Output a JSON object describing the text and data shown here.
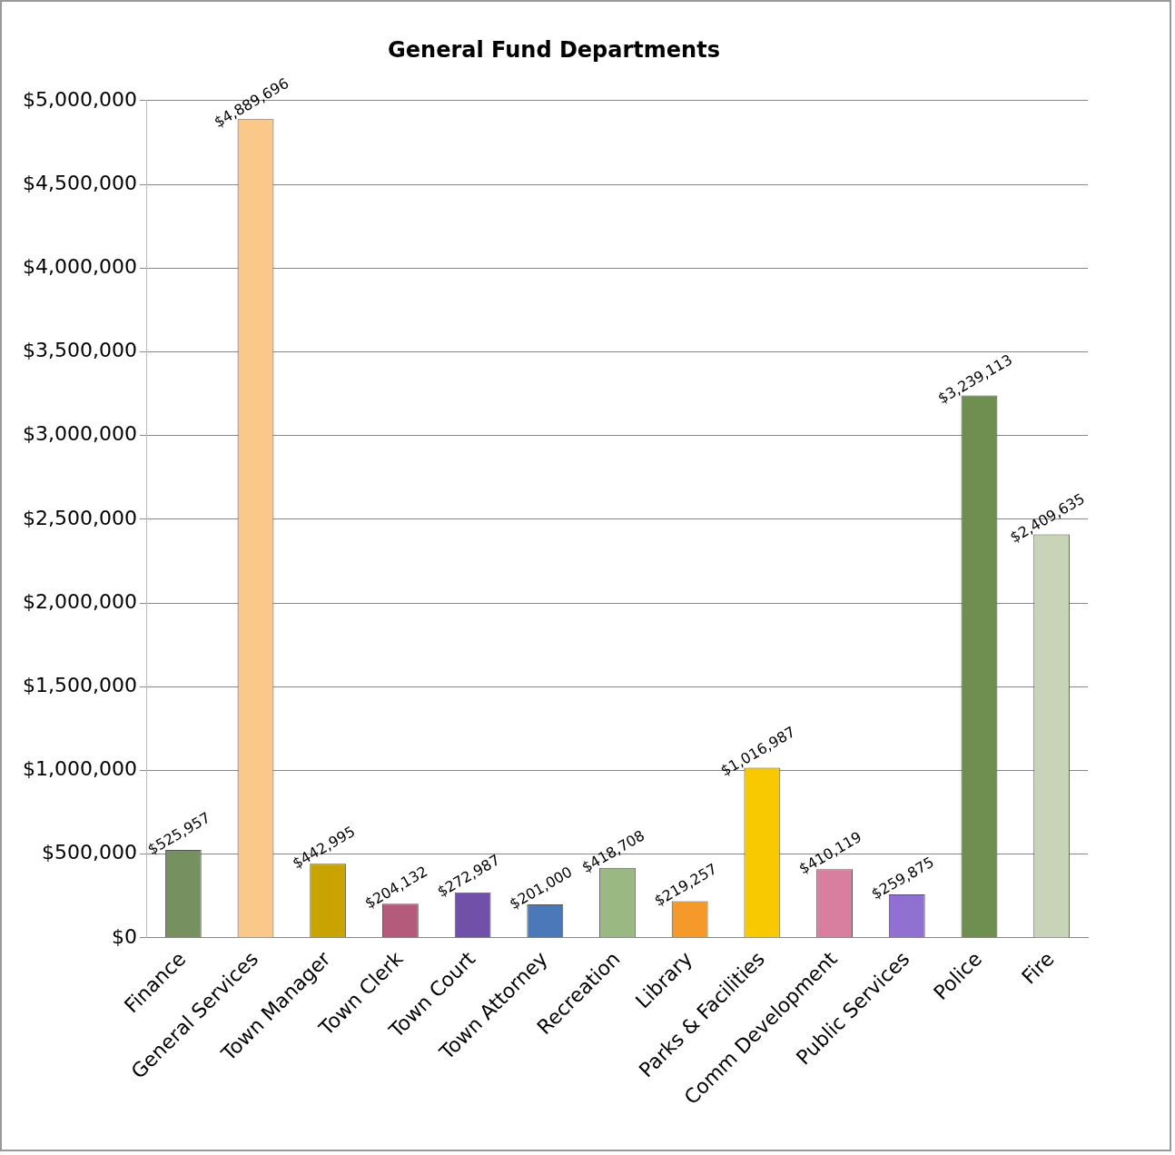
{
  "chart_data": {
    "type": "bar",
    "title": "General Fund Departments",
    "categories": [
      "Finance",
      "General Services",
      "Town Manager",
      "Town Clerk",
      "Town Court",
      "Town Attorney",
      "Recreation",
      "Library",
      "Parks & Facilities",
      "Comm Development",
      "Public Services",
      "Police",
      "Fire"
    ],
    "values": [
      525957,
      4889696,
      442995,
      204132,
      272987,
      201000,
      418708,
      219257,
      1016987,
      410119,
      259875,
      3239113,
      2409635
    ],
    "colors": [
      "#77905f",
      "#fac98a",
      "#c9a300",
      "#b45a7a",
      "#7050a8",
      "#4a78b8",
      "#9ab882",
      "#f59a2a",
      "#f8c800",
      "#d87fa0",
      "#9070d0",
      "#6f8f50",
      "#c8d4b8"
    ],
    "value_labels": [
      "$525,957",
      "$4,889,696",
      "$442,995",
      "$204,132",
      "$272,987",
      "$201,000",
      "$418,708",
      "$219,257",
      "$1,016,987",
      "$410,119",
      "$259,875",
      "$3,239,113",
      "$2,409,635"
    ],
    "ylim": [
      0,
      5000000
    ],
    "yticks": [
      {
        "value": 0,
        "label": "$0"
      },
      {
        "value": 500000,
        "label": "$500,000"
      },
      {
        "value": 1000000,
        "label": "$1,000,000"
      },
      {
        "value": 1500000,
        "label": "$1,500,000"
      },
      {
        "value": 2000000,
        "label": "$2,000,000"
      },
      {
        "value": 2500000,
        "label": "$2,500,000"
      },
      {
        "value": 3000000,
        "label": "$3,000,000"
      },
      {
        "value": 3500000,
        "label": "$3,500,000"
      },
      {
        "value": 4000000,
        "label": "$4,000,000"
      },
      {
        "value": 4500000,
        "label": "$4,500,000"
      },
      {
        "value": 5000000,
        "label": "$5,000,000"
      }
    ],
    "grid": "y",
    "legend": false
  }
}
